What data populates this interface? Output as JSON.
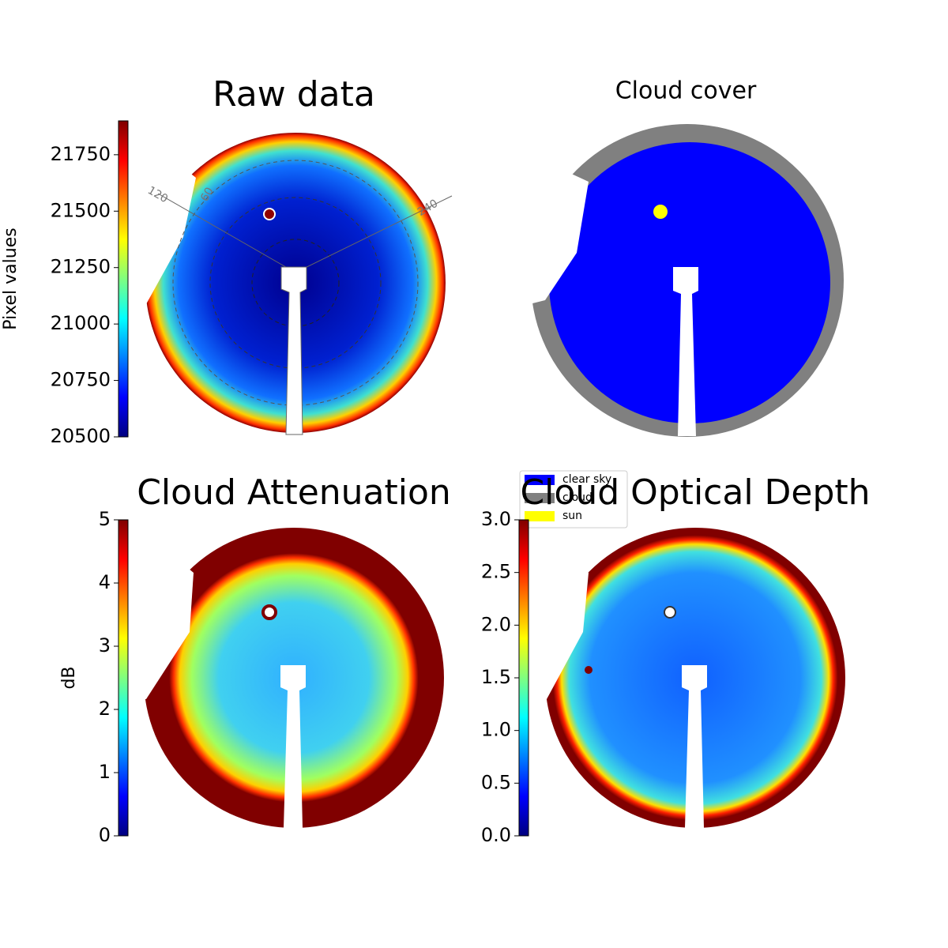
{
  "chart_data": [
    {
      "type": "image",
      "title": "Raw data",
      "colorbar_label": "Pixel values",
      "ylim": [
        20500,
        21900
      ],
      "yticks": [
        20500,
        20750,
        21000,
        21250,
        21500,
        21750
      ],
      "annotations": [
        "120",
        "60",
        "240"
      ]
    },
    {
      "type": "image",
      "title": "Cloud cover",
      "legend": [
        {
          "name": "clear sky",
          "color": "#0000ff"
        },
        {
          "name": "cloud",
          "color": "#808080"
        },
        {
          "name": "sun",
          "color": "#ffff00"
        }
      ]
    },
    {
      "type": "image",
      "title": "Cloud Attenuation",
      "colorbar_label": "dB",
      "ylim": [
        0,
        5
      ],
      "yticks": [
        0,
        1,
        2,
        3,
        4,
        5
      ]
    },
    {
      "type": "image",
      "title": "Cloud Optical Depth",
      "ylim": [
        0,
        3
      ],
      "yticks": [
        {
          "value": 0,
          "label": "0.0"
        },
        {
          "value": 0.5,
          "label": "0.5"
        },
        {
          "value": 1,
          "label": "1.0"
        },
        {
          "value": 1.5,
          "label": "1.5"
        },
        {
          "value": 2,
          "label": "2.0"
        },
        {
          "value": 2.5,
          "label": "2.5"
        },
        {
          "value": 3,
          "label": "3.0"
        }
      ]
    }
  ]
}
